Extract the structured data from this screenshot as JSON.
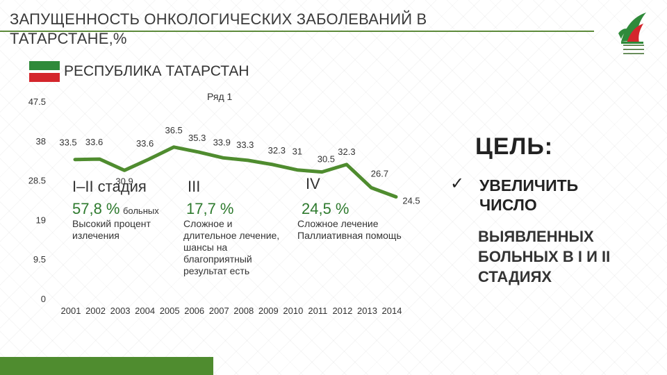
{
  "header": {
    "title": "ЗАПУЩЕННОСТЬ ОНКОЛОГИЧЕСКИХ ЗАБОЛЕВАНИЙ В ТАТАРСТАНЕ,%",
    "region_label": "РЕСПУБЛИКА ТАТАРСТАН"
  },
  "stages": [
    {
      "head": "I–II стадия",
      "pct": "57,8 %",
      "unit": "больных",
      "desc": "Высокий процент излечения"
    },
    {
      "head": "III",
      "pct": "17,7 %",
      "unit": "",
      "desc": "Сложное и длительное лечение, шансы на благоприятный результат есть"
    },
    {
      "head": "IV",
      "pct": "24,5 %",
      "unit": "",
      "desc": "Сложное лечение Паллиативная помощь"
    }
  ],
  "goal": {
    "label": "ЦЕЛЬ:",
    "check": "ü",
    "line1": "УВЕЛИЧИТЬ ЧИСЛО",
    "line2": "ВЫЯВЛЕННЫХ БОЛЬНЫХ В I И II СТАДИЯХ"
  },
  "colors": {
    "line": "#4f8c2f",
    "accent": "#2e7a2e",
    "flag_green": "#2f8a3a",
    "flag_red": "#d4262c"
  },
  "chart_data": {
    "type": "line",
    "title": "",
    "xlabel": "",
    "ylabel": "",
    "x": [
      "2001",
      "2002",
      "2003",
      "2004",
      "2005",
      "2006",
      "2007",
      "2008",
      "2009",
      "2010",
      "2011",
      "2012",
      "2013",
      "2014"
    ],
    "series": [
      {
        "name": "Ряд 1",
        "values": [
          33.5,
          33.6,
          30.9,
          33.6,
          36.5,
          35.3,
          33.9,
          33.3,
          32.3,
          31,
          30.5,
          32.3,
          26.7,
          24.5
        ],
        "labels": [
          "33.5",
          "33.6",
          "30.9",
          "33.6",
          "36.5",
          "35.3",
          "33.9",
          "33.3",
          "32.3",
          "31",
          "30.5",
          "32.3",
          "26.7",
          "24.5"
        ]
      }
    ],
    "yticks": [
      0,
      9.5,
      19,
      28.5,
      38,
      47.5
    ],
    "ytick_labels": [
      "0",
      "9.5",
      "19",
      "28.5",
      "38",
      "47.5"
    ],
    "ylim": [
      0,
      47.5
    ],
    "grid": false,
    "legend": "top-center"
  }
}
